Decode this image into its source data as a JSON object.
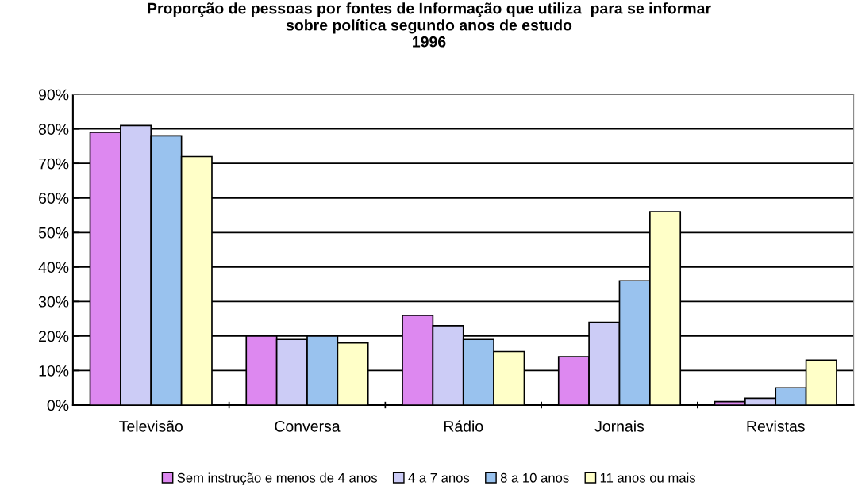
{
  "chart_data": {
    "type": "bar",
    "title": "Proporção de pessoas por fontes de Informação que utiliza  para se informar\nsobre política segundo anos de estudo\n1996",
    "categories": [
      "Televisão",
      "Conversa",
      "Rádio",
      "Jornais",
      "Revistas"
    ],
    "series": [
      {
        "name": "Sem instrução e menos de 4 anos",
        "color": "#dd88f0",
        "values": [
          79,
          20,
          26,
          14,
          1
        ]
      },
      {
        "name": "4 a 7 anos",
        "color": "#ccccf6",
        "values": [
          81,
          19,
          23,
          24,
          2
        ]
      },
      {
        "name": "8 a 10 anos",
        "color": "#99c2ee",
        "values": [
          78,
          20,
          19,
          36,
          5
        ]
      },
      {
        "name": "11 anos ou mais",
        "color": "#ffffc8",
        "values": [
          72,
          18,
          15.5,
          56,
          13
        ]
      }
    ],
    "ylim": [
      0,
      90
    ],
    "yticks": [
      {
        "value": 0,
        "label": "0%"
      },
      {
        "value": 10,
        "label": "10%"
      },
      {
        "value": 20,
        "label": "20%"
      },
      {
        "value": 30,
        "label": "30%"
      },
      {
        "value": 40,
        "label": "40%"
      },
      {
        "value": 50,
        "label": "50%"
      },
      {
        "value": 60,
        "label": "60%"
      },
      {
        "value": 70,
        "label": "70%"
      },
      {
        "value": 80,
        "label": "80%"
      },
      {
        "value": 90,
        "label": "90%"
      }
    ],
    "grid": "y",
    "legend": "bottom"
  }
}
